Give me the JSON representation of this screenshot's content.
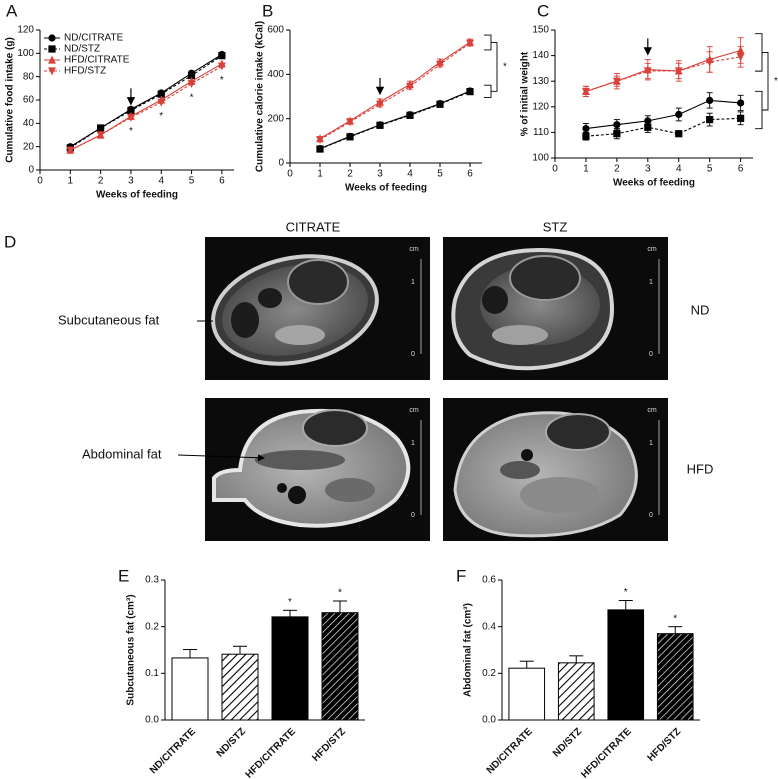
{
  "chart_data": [
    {
      "type": "line",
      "panel_label": "A",
      "x_label": "Weeks of feeding",
      "y_label": "Cumulative food intake (g)",
      "x": [
        1,
        2,
        3,
        4,
        5,
        6
      ],
      "xlim": [
        0,
        6.4
      ],
      "xticks": [
        0,
        1,
        2,
        3,
        4,
        5,
        6
      ],
      "ylim": [
        0,
        120
      ],
      "yticks": [
        0,
        20,
        40,
        60,
        80,
        100,
        120
      ],
      "legend": "upper left",
      "arrow_at": 3,
      "significance": [
        null,
        null,
        "*",
        "*",
        "*",
        "*"
      ],
      "series": [
        {
          "name": "ND/CITRATE",
          "color": "#000000",
          "marker": "circle",
          "dash": false,
          "values": [
            20,
            36,
            52,
            66,
            83,
            99
          ]
        },
        {
          "name": "ND/STZ",
          "color": "#000000",
          "marker": "square",
          "dash": true,
          "values": [
            19,
            36,
            51,
            65,
            81,
            98
          ]
        },
        {
          "name": "HFD/CITRATE",
          "color": "#d9423a",
          "marker": "triangle-up",
          "dash": false,
          "values": [
            17,
            30,
            46,
            60,
            76,
            91
          ]
        },
        {
          "name": "HFD/STZ",
          "color": "#d9423a",
          "marker": "triangle-down",
          "dash": true,
          "values": [
            17,
            30,
            45,
            58,
            74,
            89
          ]
        }
      ]
    },
    {
      "type": "line",
      "panel_label": "B",
      "x_label": "Weeks of feeding",
      "y_label": "Cumulative calorie intake (kCal)",
      "x": [
        1,
        2,
        3,
        4,
        5,
        6
      ],
      "xlim": [
        0,
        6.4
      ],
      "xticks": [
        0,
        1,
        2,
        3,
        4,
        5,
        6
      ],
      "ylim": [
        0,
        600
      ],
      "yticks": [
        0,
        200,
        400,
        600
      ],
      "arrow_at": 3,
      "bracket_text": "*",
      "series": [
        {
          "color": "#000000",
          "marker": "circle",
          "dash": false,
          "values": [
            65,
            120,
            172,
            218,
            268,
            325
          ],
          "errors": [
            4,
            4,
            5,
            6,
            7,
            8
          ]
        },
        {
          "color": "#000000",
          "marker": "square",
          "dash": true,
          "values": [
            63,
            118,
            170,
            215,
            265,
            322
          ],
          "errors": [
            4,
            4,
            5,
            6,
            7,
            8
          ]
        },
        {
          "color": "#d9423a",
          "marker": "triangle-up",
          "dash": false,
          "values": [
            110,
            190,
            275,
            355,
            455,
            545
          ],
          "errors": [
            8,
            10,
            14,
            14,
            14,
            14
          ]
        },
        {
          "color": "#d9423a",
          "marker": "triangle-down",
          "dash": true,
          "values": [
            105,
            185,
            265,
            345,
            445,
            540
          ],
          "errors": [
            8,
            10,
            12,
            12,
            12,
            12
          ]
        }
      ]
    },
    {
      "type": "line",
      "panel_label": "C",
      "x_label": "Weeks of feeding",
      "y_label": "% of initial weight",
      "x": [
        1,
        2,
        3,
        4,
        5,
        6
      ],
      "xlim": [
        0,
        6.4
      ],
      "xticks": [
        0,
        1,
        2,
        3,
        4,
        5,
        6
      ],
      "ylim": [
        100,
        150
      ],
      "yticks": [
        100,
        110,
        120,
        130,
        140,
        150
      ],
      "arrow_at": 3,
      "bracket_text": "*",
      "series": [
        {
          "color": "#000000",
          "marker": "circle",
          "dash": false,
          "values": [
            111.5,
            113,
            114.5,
            117,
            122.5,
            121.5
          ],
          "errors": [
            2,
            2,
            2,
            2.5,
            3,
            3
          ]
        },
        {
          "color": "#000000",
          "marker": "square",
          "dash": true,
          "values": [
            108.5,
            109.5,
            112,
            109.5,
            115,
            115.5
          ],
          "errors": [
            1.5,
            2,
            2,
            1,
            2.5,
            2.5
          ]
        },
        {
          "color": "#d9423a",
          "marker": "triangle-up",
          "dash": false,
          "values": [
            126,
            130,
            134.5,
            134,
            138.5,
            142
          ],
          "errors": [
            2,
            3,
            4,
            4,
            5,
            5
          ]
        },
        {
          "color": "#d9423a",
          "marker": "triangle-down",
          "dash": true,
          "values": [
            126,
            130,
            134,
            134,
            137.5,
            139.5
          ],
          "errors": [
            2,
            2,
            3,
            3,
            4,
            4
          ]
        }
      ]
    },
    {
      "type": "bar",
      "panel_label": "E",
      "y_label": "Subcutaneous fat (cm³)",
      "categories": [
        "ND/CITRATE",
        "ND/STZ",
        "HFD/CITRATE",
        "HFD/STZ"
      ],
      "values": [
        0.133,
        0.141,
        0.221,
        0.23
      ],
      "errors": [
        0.018,
        0.017,
        0.014,
        0.025
      ],
      "colors": [
        "#ffffff",
        "#ffffff",
        "#000000",
        "#000000"
      ],
      "hatch": [
        false,
        true,
        false,
        true
      ],
      "significance": [
        null,
        null,
        "*",
        "*"
      ],
      "ylim": [
        0,
        0.3
      ],
      "yticks": [
        {
          "value": 0,
          "label": "0.0"
        },
        0.1,
        0.2,
        0.3
      ]
    },
    {
      "type": "bar",
      "panel_label": "F",
      "y_label": "Abdominal fat (cm³)",
      "categories": [
        "ND/CITRATE",
        "ND/STZ",
        "HFD/CITRATE",
        "HFD/STZ"
      ],
      "values": [
        0.222,
        0.245,
        0.472,
        0.37
      ],
      "errors": [
        0.03,
        0.03,
        0.04,
        0.03
      ],
      "colors": [
        "#ffffff",
        "#ffffff",
        "#000000",
        "#000000"
      ],
      "hatch": [
        false,
        true,
        false,
        true
      ],
      "significance": [
        null,
        null,
        "*",
        "*"
      ],
      "ylim": [
        0,
        0.6
      ],
      "yticks": [
        {
          "value": 0,
          "label": "0.0"
        },
        0.2,
        0.4,
        0.6
      ]
    }
  ],
  "mri": {
    "panel_label": "D",
    "columns": [
      "CITRATE",
      "STZ"
    ],
    "rows": [
      "ND",
      "HFD"
    ],
    "callouts": [
      "Subcutaneous fat",
      "Abdominal fat"
    ],
    "scale_unit": "cm",
    "scale_ticks": [
      "1",
      "0"
    ]
  }
}
